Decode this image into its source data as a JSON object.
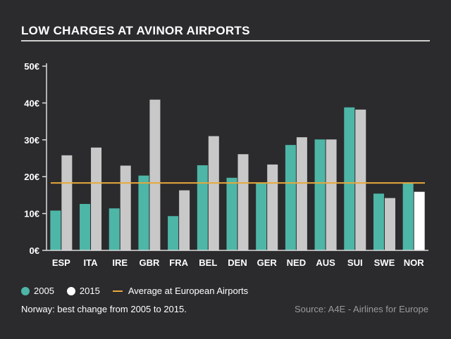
{
  "title": "LOW CHARGES AT AVINOR AIRPORTS",
  "note": "Norway: best change from 2005 to 2015.",
  "source": "Source: A4E - Airlines for Europe",
  "legend": {
    "s2005": "2005",
    "s2015": "2015",
    "avg": "Average at European Airports"
  },
  "colors": {
    "s2005": "#4db6a7",
    "s2015": "#c8c8c8",
    "s2015_highlight": "#ffffff",
    "avg": "#e8a93a",
    "axis": "#dcdcdc"
  },
  "chart_data": {
    "type": "bar",
    "title": "LOW CHARGES AT AVINOR AIRPORTS",
    "xlabel": "",
    "ylabel": "",
    "categories": [
      "ESP",
      "ITA",
      "IRE",
      "GBR",
      "FRA",
      "BEL",
      "DEN",
      "GER",
      "NED",
      "AUS",
      "SUI",
      "SWE",
      "NOR"
    ],
    "series": [
      {
        "name": "2005",
        "values": [
          10.8,
          12.6,
          11.4,
          20.3,
          9.3,
          23.1,
          19.7,
          18.3,
          28.6,
          30.1,
          38.8,
          15.4,
          18.3
        ]
      },
      {
        "name": "2015",
        "values": [
          25.8,
          27.9,
          23.0,
          40.9,
          16.3,
          31.0,
          26.1,
          23.3,
          30.7,
          30.1,
          38.2,
          14.2,
          15.9
        ]
      }
    ],
    "reference_line": {
      "name": "Average at European Airports",
      "value": 18.3
    },
    "ylim": [
      0,
      50
    ],
    "yticks": [
      0,
      10,
      20,
      30,
      40,
      50
    ],
    "ytick_labels": [
      "0€",
      "10€",
      "20€",
      "30€",
      "40€",
      "50€"
    ],
    "grid": false,
    "legend_position": "bottom-left"
  }
}
